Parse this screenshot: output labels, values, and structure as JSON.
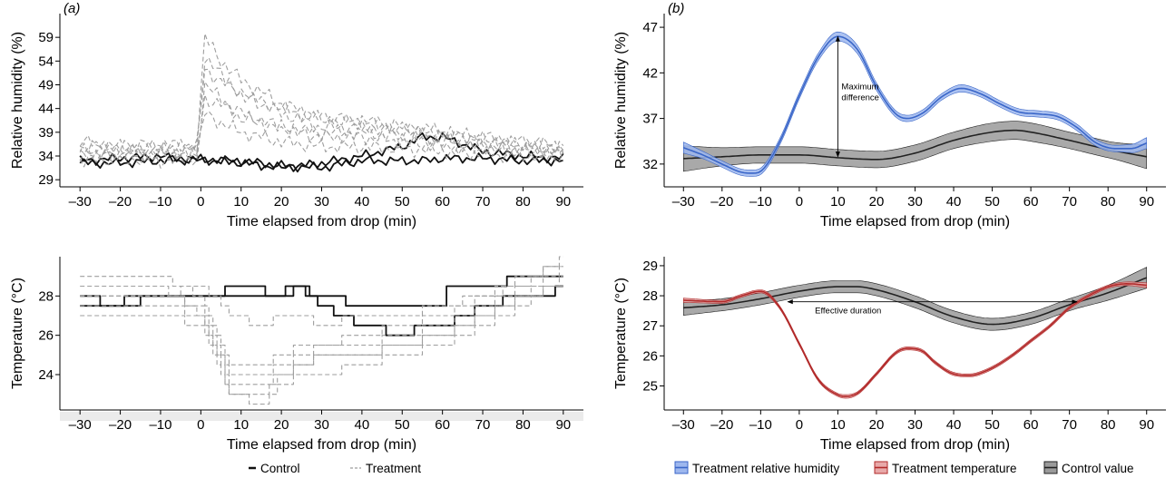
{
  "chart_data": [
    {
      "id": "a_rh",
      "type": "line",
      "panel_label": "(a)",
      "ylabel": "Relative humidity (%)",
      "xlabel": "Time elapsed from drop (min)",
      "xlim": [
        -35,
        95
      ],
      "ylim": [
        27.5,
        64
      ],
      "xticks": [
        -30,
        -20,
        -10,
        0,
        10,
        20,
        30,
        40,
        50,
        60,
        70,
        80,
        90
      ],
      "yticks": [
        29,
        34,
        39,
        44,
        49,
        54,
        59
      ],
      "grid": false,
      "series": [
        {
          "name": "Control",
          "style": "solid",
          "color": "#111111",
          "x": [
            -30,
            -20,
            -10,
            -5,
            0,
            10,
            20,
            30,
            40,
            50,
            55,
            60,
            70,
            80,
            90
          ],
          "y": [
            32.5,
            32.5,
            33,
            33.5,
            33,
            33,
            32,
            31.5,
            33,
            33,
            33,
            33.5,
            33.5,
            33,
            33
          ]
        },
        {
          "name": "Control",
          "style": "solid",
          "color": "#111111",
          "x": [
            -30,
            -20,
            -10,
            -5,
            0,
            10,
            20,
            30,
            40,
            50,
            55,
            60,
            70,
            80,
            90
          ],
          "y": [
            33,
            33.5,
            34,
            33,
            33.5,
            32.5,
            31.5,
            32.5,
            34,
            36,
            38,
            38,
            35,
            34,
            33.5
          ]
        },
        {
          "name": "Treatment",
          "style": "dashed",
          "color": "#9e9e9e",
          "x": [
            -30,
            -20,
            -10,
            -1,
            1,
            5,
            10,
            20,
            30,
            40,
            50,
            60,
            70,
            80,
            90
          ],
          "y": [
            35,
            35,
            35,
            35.5,
            55,
            51,
            47,
            43,
            40,
            40,
            39,
            38,
            37,
            36,
            35
          ]
        },
        {
          "name": "Treatment",
          "style": "dashed",
          "color": "#9e9e9e",
          "x": [
            -30,
            -20,
            -10,
            -1,
            1,
            5,
            10,
            20,
            30,
            40,
            50,
            60,
            70,
            80,
            90
          ],
          "y": [
            34,
            34,
            34.5,
            34,
            49,
            46,
            43,
            40,
            38,
            38,
            37,
            36,
            35.5,
            35,
            34.5
          ]
        },
        {
          "name": "Treatment",
          "style": "dashed",
          "color": "#9e9e9e",
          "x": [
            -30,
            -20,
            -10,
            -1,
            1,
            5,
            10,
            20,
            30,
            40,
            50,
            60,
            70,
            80,
            90
          ],
          "y": [
            36,
            36,
            35.5,
            36,
            59,
            54,
            50,
            45,
            42,
            41,
            40,
            39,
            38,
            37,
            36
          ]
        },
        {
          "name": "Treatment",
          "style": "dashed",
          "color": "#9e9e9e",
          "x": [
            -30,
            -20,
            -10,
            -1,
            1,
            5,
            10,
            20,
            30,
            40,
            50,
            60,
            70,
            80,
            90
          ],
          "y": [
            33,
            33.5,
            33,
            33.5,
            43,
            41,
            39,
            37,
            36,
            36,
            35.5,
            35,
            34.5,
            34,
            34
          ]
        },
        {
          "name": "Treatment",
          "style": "dashed",
          "color": "#9e9e9e",
          "x": [
            -30,
            -20,
            -10,
            -1,
            1,
            5,
            10,
            20,
            30,
            40,
            50,
            60,
            70,
            80,
            90
          ],
          "y": [
            37,
            36,
            36.5,
            36,
            52,
            50,
            47,
            44,
            42,
            41.5,
            40,
            39,
            37.5,
            36.5,
            36
          ]
        },
        {
          "name": "Treatment",
          "style": "dashed",
          "color": "#9e9e9e",
          "x": [
            -30,
            -20,
            -10,
            -1,
            1,
            5,
            10,
            20,
            30,
            40,
            50,
            60,
            70,
            80,
            90
          ],
          "y": [
            35,
            34.5,
            35,
            34.5,
            46,
            45,
            42,
            40,
            39,
            39,
            38,
            37,
            36,
            35.5,
            35
          ]
        }
      ]
    },
    {
      "id": "a_temp",
      "type": "line",
      "panel_label": "",
      "ylabel": "Temperature (°C)",
      "xlabel": "Time elapsed from drop (min)",
      "xlim": [
        -35,
        95
      ],
      "ylim": [
        22.2,
        30
      ],
      "xticks": [
        -30,
        -20,
        -10,
        0,
        10,
        20,
        30,
        40,
        50,
        60,
        70,
        80,
        90
      ],
      "yticks": [
        24,
        26,
        28
      ],
      "grid": false,
      "series": [
        {
          "name": "Control",
          "style": "solid",
          "color": "#111111",
          "step": true,
          "x": [
            -30,
            -26,
            -25,
            -20,
            -18,
            -17,
            -15,
            5,
            6,
            15,
            16,
            20,
            21,
            25,
            26,
            35,
            36,
            60,
            61,
            90
          ],
          "y": [
            28,
            28,
            27.5,
            27.5,
            28,
            28,
            28,
            28,
            28.5,
            28.5,
            28,
            28,
            28.5,
            28.5,
            28,
            28,
            27.5,
            27.5,
            28.5,
            29
          ]
        },
        {
          "name": "Control",
          "style": "solid",
          "color": "#111111",
          "step": true,
          "x": [
            -30,
            -20,
            -10,
            0,
            20,
            25,
            30,
            35,
            40,
            50,
            55,
            60,
            65,
            70,
            80,
            85,
            90
          ],
          "y": [
            27.5,
            27.5,
            28,
            28,
            28,
            28.5,
            27.5,
            27,
            26.5,
            26,
            26.5,
            26.5,
            27,
            27.5,
            28,
            28,
            28.5
          ]
        },
        {
          "name": "Treatment",
          "style": "dashed",
          "color": "#9e9e9e",
          "step": true,
          "x": [
            -30,
            -10,
            0,
            3,
            7,
            15,
            20,
            25,
            30,
            40,
            50,
            60,
            70,
            80,
            90
          ],
          "y": [
            28,
            28,
            27.5,
            26,
            23.5,
            23.5,
            24,
            24.5,
            25,
            25,
            25.5,
            26,
            27,
            28,
            29.5
          ]
        },
        {
          "name": "Treatment",
          "style": "dashed",
          "color": "#9e9e9e",
          "step": true,
          "x": [
            -30,
            -10,
            0,
            3,
            7,
            15,
            20,
            25,
            30,
            40,
            50,
            60,
            70,
            80,
            90
          ],
          "y": [
            28.5,
            28.5,
            27,
            25.5,
            24,
            24,
            24.5,
            25,
            25.5,
            25.5,
            26,
            26.5,
            27.5,
            28.5,
            30
          ]
        },
        {
          "name": "Treatment",
          "style": "dashed",
          "color": "#9e9e9e",
          "step": true,
          "x": [
            -30,
            -10,
            0,
            3,
            7,
            15,
            20,
            25,
            30,
            40,
            50,
            60,
            70,
            80,
            90
          ],
          "y": [
            27,
            27,
            26.5,
            25,
            23,
            22.5,
            23.5,
            24,
            24,
            24.5,
            25,
            25.5,
            26.5,
            27.5,
            29
          ]
        },
        {
          "name": "Treatment",
          "style": "dashed",
          "color": "#9e9e9e",
          "step": true,
          "x": [
            -30,
            -10,
            0,
            3,
            7,
            15,
            20,
            25,
            30,
            40,
            50,
            60,
            70,
            80,
            90
          ],
          "y": [
            29,
            29,
            28,
            26.5,
            24.5,
            24.5,
            25,
            25.5,
            25.5,
            26,
            26.5,
            27,
            28,
            29,
            29.5
          ]
        },
        {
          "name": "Treatment",
          "style": "dashed",
          "color": "#9e9e9e",
          "step": true,
          "x": [
            -30,
            -10,
            0,
            3,
            7,
            15,
            20,
            25,
            30,
            40,
            50,
            60,
            70,
            80,
            90
          ],
          "y": [
            27.5,
            27.5,
            27,
            25.5,
            23,
            23,
            24,
            24.5,
            25,
            25,
            25.5,
            26,
            27,
            28,
            28.5
          ]
        },
        {
          "name": "Treatment",
          "style": "dashed",
          "color": "#9e9e9e",
          "step": true,
          "x": [
            -30,
            -10,
            0,
            3,
            7,
            15,
            20,
            25,
            30,
            40,
            50,
            60,
            70,
            80,
            90
          ],
          "y": [
            28,
            28,
            28.5,
            28,
            27,
            26.5,
            27,
            27,
            26.5,
            27,
            27,
            27.5,
            28,
            28.5,
            28.5
          ]
        }
      ]
    },
    {
      "id": "b_rh",
      "type": "line",
      "panel_label": "(b)",
      "ylabel": "Relative humidity (%)",
      "xlabel": "Time elapsed from drop (min)",
      "xlim": [
        -35,
        95
      ],
      "ylim": [
        29.5,
        48.5
      ],
      "xticks": [
        -30,
        -20,
        -10,
        0,
        10,
        20,
        30,
        40,
        50,
        60,
        70,
        80,
        90
      ],
      "yticks": [
        32,
        37,
        42,
        47
      ],
      "grid": false,
      "series": [
        {
          "name": "Control value",
          "color": "#222222",
          "band_color": "#9a9a9a",
          "x": [
            -30,
            -20,
            -10,
            0,
            10,
            20,
            30,
            40,
            50,
            56,
            60,
            70,
            80,
            90
          ],
          "y": [
            32.6,
            32.8,
            33.0,
            33.0,
            32.7,
            32.5,
            33.2,
            34.6,
            35.5,
            35.7,
            35.5,
            34.6,
            33.6,
            32.8
          ],
          "band": [
            1.4,
            1.0,
            0.9,
            0.9,
            0.9,
            0.9,
            0.9,
            0.9,
            1.0,
            1.0,
            1.0,
            0.9,
            0.9,
            1.3
          ]
        },
        {
          "name": "Treatment relative humidity",
          "color": "#3a66c8",
          "band_color": "#9db7ee",
          "x": [
            -30,
            -25,
            -20,
            -15,
            -12,
            -10,
            -5,
            0,
            5,
            10,
            15,
            20,
            25,
            28,
            32,
            37,
            42,
            47,
            52,
            57,
            62,
            67,
            72,
            77,
            82,
            86,
            90
          ],
          "y": [
            33.8,
            33.0,
            32.0,
            31.1,
            31.0,
            31.2,
            34.5,
            39.5,
            43.8,
            46.0,
            44.6,
            40.5,
            37.5,
            37.0,
            37.6,
            39.4,
            40.3,
            39.7,
            38.6,
            37.7,
            37.5,
            37.2,
            36.0,
            34.3,
            33.7,
            33.7,
            34.3
          ],
          "band": [
            0.6,
            0.4,
            0.35,
            0.35,
            0.35,
            0.35,
            0.35,
            0.35,
            0.4,
            0.5,
            0.45,
            0.4,
            0.35,
            0.35,
            0.35,
            0.35,
            0.4,
            0.35,
            0.35,
            0.35,
            0.35,
            0.35,
            0.35,
            0.35,
            0.35,
            0.45,
            0.6
          ]
        }
      ],
      "annotations": [
        {
          "text_lines": [
            "Maximum",
            "difference"
          ],
          "x": 10,
          "y_from": 32.8,
          "y_to": 46.0
        }
      ]
    },
    {
      "id": "b_temp",
      "type": "line",
      "panel_label": "",
      "ylabel": "Temperature (°C)",
      "xlabel": "Time elapsed from drop (min)",
      "xlim": [
        -35,
        95
      ],
      "ylim": [
        24.2,
        29.3
      ],
      "xticks": [
        -30,
        -20,
        -10,
        0,
        10,
        20,
        30,
        40,
        50,
        60,
        70,
        80,
        90
      ],
      "yticks": [
        25,
        26,
        27,
        28,
        29
      ],
      "grid": false,
      "series": [
        {
          "name": "Control value",
          "color": "#222222",
          "band_color": "#9a9a9a",
          "x": [
            -30,
            -20,
            -10,
            0,
            10,
            15,
            20,
            30,
            40,
            50,
            60,
            70,
            80,
            90
          ],
          "y": [
            27.6,
            27.7,
            27.9,
            28.15,
            28.3,
            28.3,
            28.2,
            27.8,
            27.3,
            27.05,
            27.25,
            27.7,
            28.1,
            28.6
          ],
          "band": [
            0.25,
            0.2,
            0.2,
            0.2,
            0.2,
            0.2,
            0.2,
            0.2,
            0.2,
            0.2,
            0.2,
            0.2,
            0.25,
            0.35
          ]
        },
        {
          "name": "Treatment temperature",
          "color": "#b22a2a",
          "band_color": "#e8a9a9",
          "x": [
            -30,
            -20,
            -15,
            -10,
            -5,
            0,
            5,
            10,
            12,
            15,
            20,
            25,
            28,
            32,
            35,
            40,
            44,
            50,
            55,
            60,
            65,
            70,
            75,
            80,
            85,
            90
          ],
          "y": [
            27.85,
            27.8,
            28.0,
            28.15,
            27.6,
            26.4,
            25.2,
            24.7,
            24.65,
            24.75,
            25.4,
            26.1,
            26.25,
            26.15,
            25.8,
            25.4,
            25.35,
            25.6,
            26.0,
            26.5,
            27.0,
            27.6,
            28.0,
            28.3,
            28.4,
            28.35
          ],
          "band": [
            0.07,
            0.05,
            0.05,
            0.05,
            0.05,
            0.05,
            0.05,
            0.05,
            0.06,
            0.05,
            0.05,
            0.05,
            0.05,
            0.05,
            0.05,
            0.05,
            0.05,
            0.05,
            0.05,
            0.05,
            0.05,
            0.05,
            0.05,
            0.05,
            0.06,
            0.08
          ]
        }
      ],
      "annotations": [
        {
          "text": "Effective duration",
          "y": 27.8,
          "x_from": -3,
          "x_to": 72
        }
      ]
    }
  ],
  "legends": {
    "left": [
      {
        "label": "Control",
        "style": "solid",
        "color": "#111111"
      },
      {
        "label": "Treatment",
        "style": "dashed",
        "color": "#9e9e9e"
      }
    ],
    "right": [
      {
        "label": "Treatment relative humidity",
        "color": "#3a66c8",
        "fill": "#9db7ee"
      },
      {
        "label": "Treatment temperature",
        "color": "#b22a2a",
        "fill": "#e8a9a9"
      },
      {
        "label": "Control value",
        "color": "#222222",
        "fill": "#9a9a9a"
      }
    ]
  }
}
